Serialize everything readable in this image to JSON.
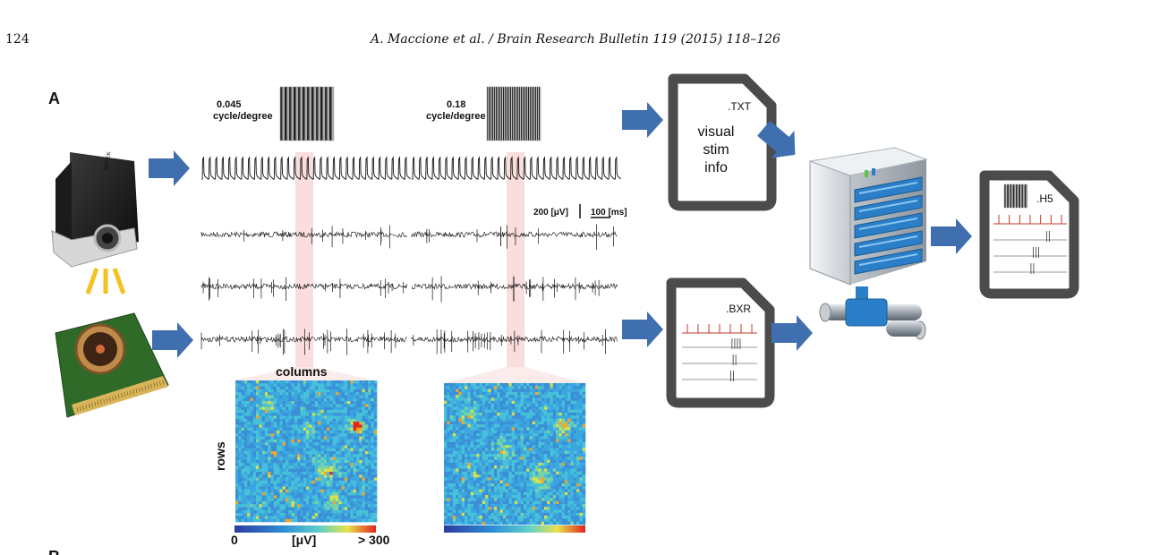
{
  "header": {
    "page_number": "124",
    "running_title": "A. Maccione et al. / Brain Research Bulletin 119 (2015) 118–126"
  },
  "figure": {
    "panel_label": "A",
    "next_panel_label": "B",
    "stimulus_1": {
      "line1": "0.045",
      "line2": "cycle/degree"
    },
    "stimulus_2": {
      "line1": "0.18",
      "line2": "cycle/degree"
    },
    "scalebar_uv": "200 [μV]",
    "scalebar_ms": "100 [ms]",
    "map_columns_label": "columns",
    "map_rows_label": "rows",
    "colorbar_min": "0",
    "colorbar_unit": "[μV]",
    "colorbar_max": "> 300",
    "file_txt": {
      "ext": ".TXT",
      "line1": "visual",
      "line2": "stim",
      "line3": "info"
    },
    "file_bxr": {
      "ext": ".BXR"
    },
    "file_h5": {
      "ext": ".H5"
    },
    "projector_brand": "MPTEK"
  },
  "colors": {
    "arrow": "#3f6fae",
    "file_border": "#4b4b4b",
    "raster_red": "#c0392b",
    "highlight": "#f6c6c6",
    "server_blue": "#2a7fc8"
  }
}
